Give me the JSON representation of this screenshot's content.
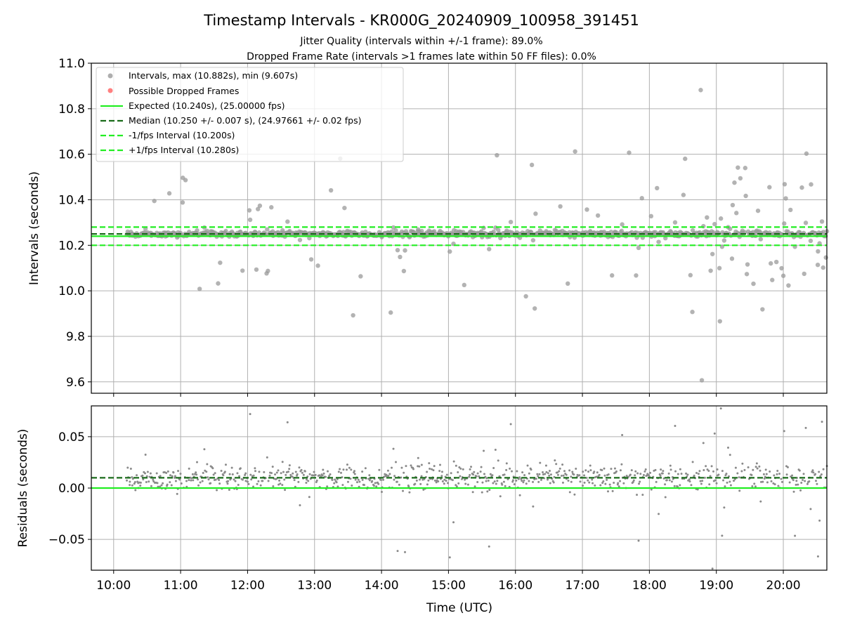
{
  "figure": {
    "title": "Timestamp Intervals - KR000G_20240909_100958_391451",
    "subtitle_1": "Jitter Quality (intervals within +/-1 frame): 89.0%",
    "subtitle_2": "Dropped Frame Rate (intervals >1 frames late within 50 FF files): 0.0%"
  },
  "chart_data": [
    {
      "type": "scatter",
      "panel": "intervals",
      "ylabel": "Intervals (seconds)",
      "xlabel": "",
      "ylim": [
        9.55,
        11.0
      ],
      "xlim": [
        "09:40",
        "20:39"
      ],
      "y_ticks": [
        "9.6",
        "9.8",
        "10.0",
        "10.2",
        "10.4",
        "10.6",
        "10.8",
        "11.0"
      ],
      "y_tick_values": [
        9.6,
        9.8,
        10.0,
        10.2,
        10.4,
        10.6,
        10.8,
        11.0
      ],
      "grid": true,
      "legend_placement": "upper-left",
      "legend": [
        {
          "label": "Intervals, max (10.882s), min (9.607s)",
          "kind": "dot",
          "color": "#9a9a9a"
        },
        {
          "label": "Possible Dropped Frames",
          "kind": "dot",
          "color": "#ff6060"
        },
        {
          "label": "Expected (10.240s), (25.00000 fps)",
          "kind": "solid",
          "color": "#22ee22"
        },
        {
          "label": "Median (10.250 +/- 0.007 s), (24.97661 +/- 0.02 fps)",
          "kind": "dashed",
          "color": "#1a6b1a"
        },
        {
          "label": "-1/fps Interval (10.200s)",
          "kind": "dashed",
          "color": "#22ee22"
        },
        {
          "label": "+1/fps Interval (10.280s)",
          "kind": "dashed",
          "color": "#22ee22"
        }
      ],
      "reference_lines": {
        "expected": 10.24,
        "median": 10.25,
        "minus_1_fps": 10.2,
        "plus_1_fps": 10.28
      },
      "time_span": [
        "10:12",
        "20:39"
      ],
      "typical_interval": 10.25,
      "max_interval": 10.882,
      "min_interval": 9.607
    },
    {
      "type": "scatter",
      "panel": "residuals",
      "ylabel": "Residuals (seconds)",
      "xlabel": "Time (UTC)",
      "ylim": [
        -0.08,
        0.08
      ],
      "xlim": [
        "09:40",
        "20:39"
      ],
      "y_ticks": [
        "−0.05",
        "0.00",
        "0.05"
      ],
      "y_tick_values": [
        -0.05,
        0.0,
        0.05
      ],
      "x_ticks": [
        "10:00",
        "11:00",
        "12:00",
        "13:00",
        "14:00",
        "15:00",
        "16:00",
        "17:00",
        "18:00",
        "19:00",
        "20:00"
      ],
      "grid": true,
      "reference_lines": {
        "zero": 0.0,
        "median_offset": 0.01
      },
      "time_span": [
        "10:12",
        "20:39"
      ]
    }
  ],
  "colors": {
    "point": "#8a8a8a",
    "expected": "#22ee22",
    "median": "#1a6b1a",
    "grid": "#b0b0b0"
  }
}
